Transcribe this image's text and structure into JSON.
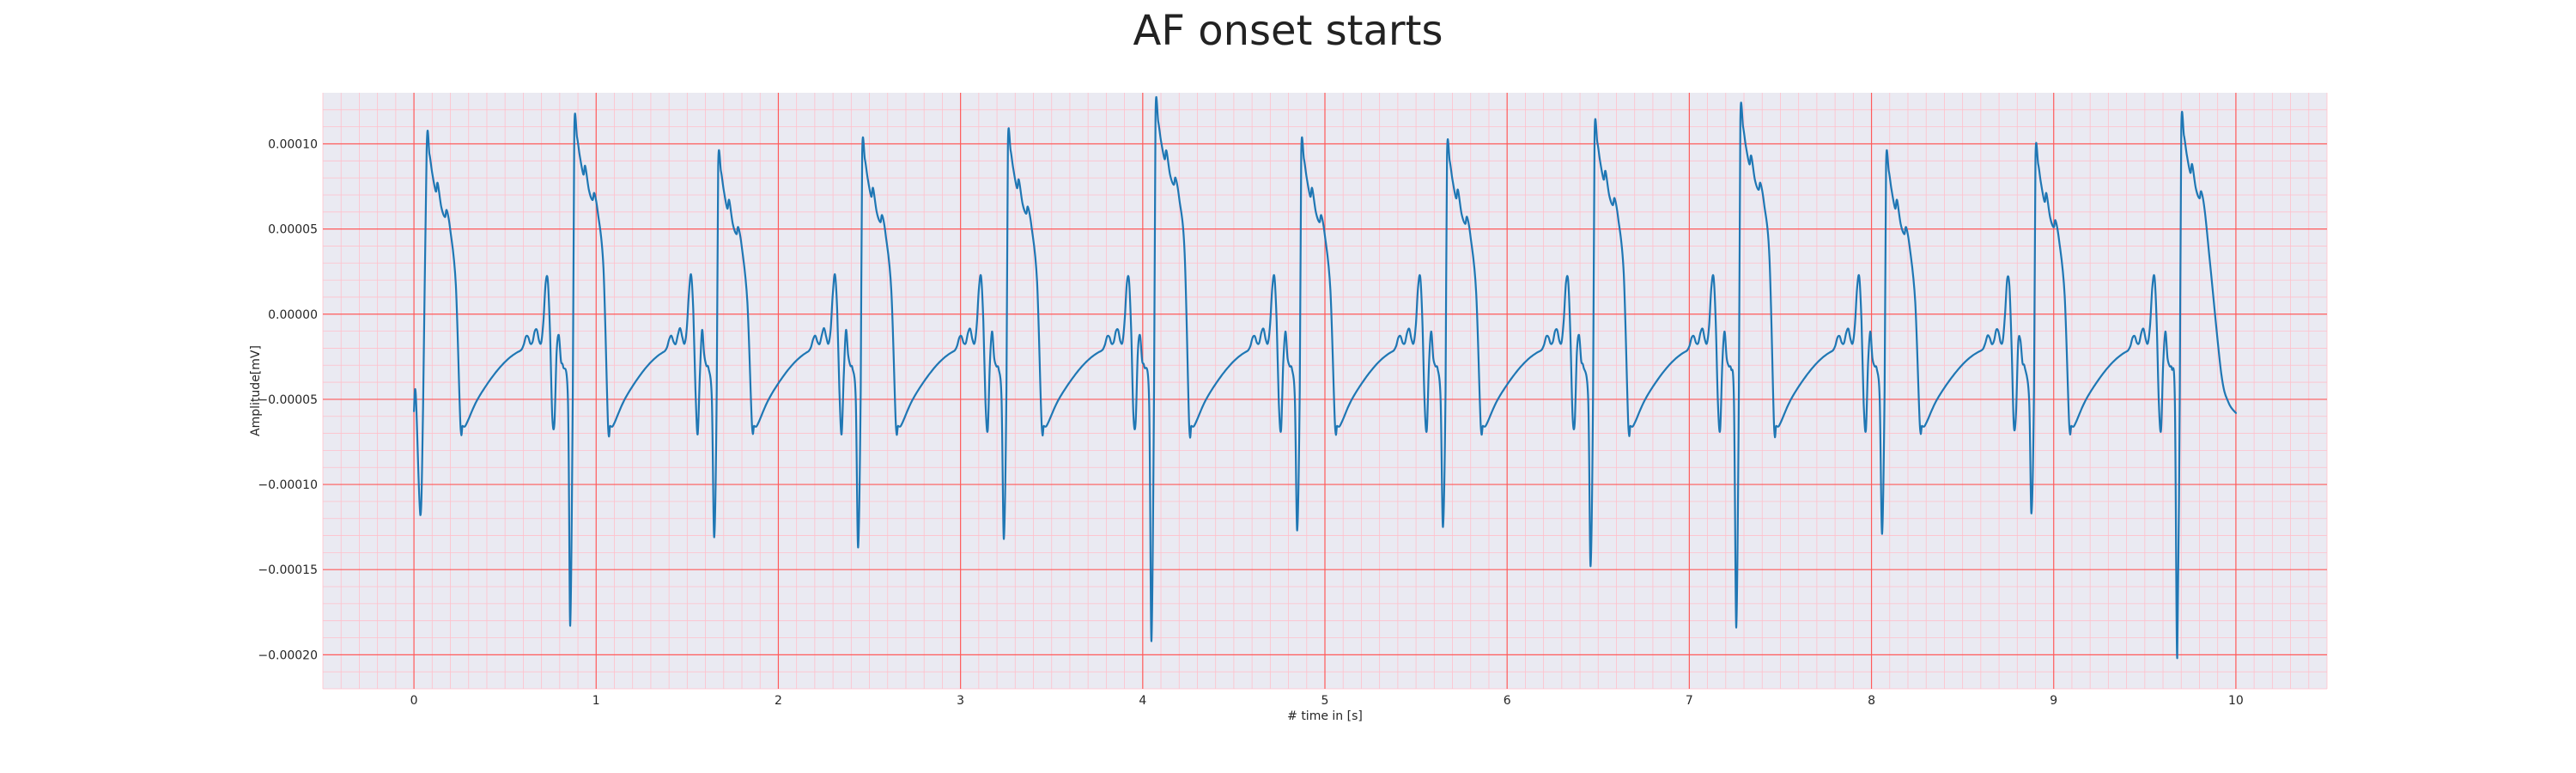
{
  "chart_data": {
    "type": "line",
    "title": "AF onset starts",
    "xlabel": "# time in [s]",
    "ylabel": "Amplitude[mV]",
    "xlim": [
      -0.5,
      10.5
    ],
    "ylim": [
      -0.00022,
      0.00013
    ],
    "x_ticks": [
      0,
      1,
      2,
      3,
      4,
      5,
      6,
      7,
      8,
      9,
      10
    ],
    "x_tick_labels": [
      "0",
      "1",
      "2",
      "3",
      "4",
      "5",
      "6",
      "7",
      "8",
      "9",
      "10"
    ],
    "y_ticks": [
      -0.0002,
      -0.00015,
      -0.0001,
      -5e-05,
      0.0,
      5e-05,
      0.0001
    ],
    "y_tick_labels": [
      "−0.00020",
      "−0.00015",
      "−0.00010",
      "−0.00005",
      "0.00000",
      "0.00005",
      "0.00010"
    ],
    "grid": true,
    "colors": {
      "plot_background": "#eaeaf2",
      "major_grid": "#ff5a5a",
      "minor_grid": "#ffc0cb",
      "line": "#1f77b4"
    },
    "beats": [
      {
        "r_time": 0.07,
        "r_peak": 9.7e-05,
        "s_trough": -0.000118
      },
      {
        "r_time": 0.88,
        "r_peak": 0.000107,
        "s_trough": -0.000183
      },
      {
        "r_time": 1.67,
        "r_peak": 8.7e-05,
        "s_trough": -0.000131
      },
      {
        "r_time": 2.46,
        "r_peak": 9.4e-05,
        "s_trough": -0.000137
      },
      {
        "r_time": 3.26,
        "r_peak": 9.9e-05,
        "s_trough": -0.000132
      },
      {
        "r_time": 4.07,
        "r_peak": 0.000116,
        "s_trough": -0.000192
      },
      {
        "r_time": 4.87,
        "r_peak": 9.4e-05,
        "s_trough": -0.000127
      },
      {
        "r_time": 5.67,
        "r_peak": 9.3e-05,
        "s_trough": -0.000125
      },
      {
        "r_time": 6.48,
        "r_peak": 0.000104,
        "s_trough": -0.000148
      },
      {
        "r_time": 7.28,
        "r_peak": 0.000113,
        "s_trough": -0.000184
      },
      {
        "r_time": 8.08,
        "r_peak": 8.7e-05,
        "s_trough": -0.000129
      },
      {
        "r_time": 8.9,
        "r_peak": 9.1e-05,
        "s_trough": -0.000117
      },
      {
        "r_time": 9.7,
        "r_peak": 0.000108,
        "s_trough": -0.000202
      }
    ],
    "start": {
      "x": 0.0,
      "y": -5.7e-05
    },
    "end": {
      "x": 10.0,
      "y": -5.8e-05
    }
  }
}
